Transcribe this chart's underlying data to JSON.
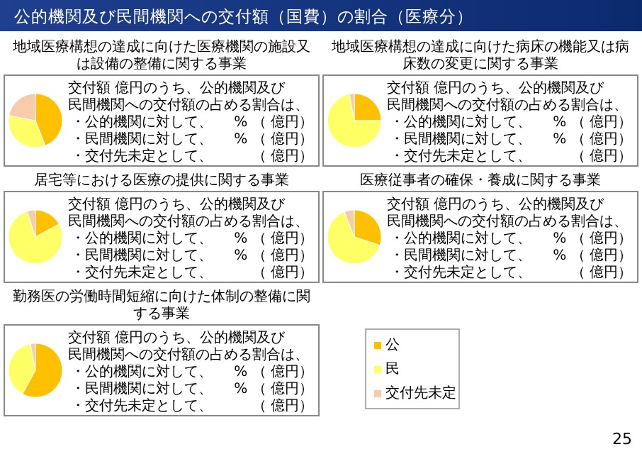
{
  "chart_data": [
    {
      "type": "pie",
      "title": "地域医療構想の達成に向けた医療機関の施設又は設備の整備に関する事業",
      "categories": [
        null,
        null,
        null
      ],
      "values": [
        44,
        34,
        22
      ],
      "colors": [
        "#ffc000",
        "#ffff66",
        "#f8cbad"
      ],
      "legend": false,
      "annotations": [
        "交付額  億円のうち、公的機関及び",
        "民間機関への交付額の占める割合は、",
        "・公的機関に対して、",
        "% （ 億円）",
        "・民間機関に対して、",
        "% （ 億円）",
        "・交付先未定として、",
        "（ 億円）"
      ]
    },
    {
      "type": "pie",
      "title": "地域医療構想の達成に向けた病床の機能又は病床数の変更に関する事業",
      "categories": [
        null,
        null,
        null
      ],
      "values": [
        25,
        72,
        3
      ],
      "colors": [
        "#ffc000",
        "#ffff66",
        "#f8cbad"
      ],
      "legend": false,
      "annotations": [
        "交付額  億円のうち、公的機関及び",
        "民間機関への交付額の占める割合は、",
        "・公的機関に対して、",
        "% （ 億円）",
        "・民間機関に対して、",
        "% （ 億円）",
        "・交付先未定として、",
        "（ 億円）"
      ]
    },
    {
      "type": "pie",
      "title": "居宅等における医療の提供に関する事業",
      "categories": [
        null,
        null,
        null
      ],
      "values": [
        17,
        78,
        5
      ],
      "colors": [
        "#ffc000",
        "#ffff66",
        "#f8cbad"
      ],
      "legend": false,
      "annotations": [
        "交付額  億円のうち、公的機関及び",
        "民間機関への交付額の占める割合は、",
        "・公的機関に対して、",
        "% （ 億円）",
        "・民間機関に対して、",
        "% （ 億円）",
        "・交付先未定として、",
        "（ 億円）"
      ]
    },
    {
      "type": "pie",
      "title": "医療従事者の確保・養成に関する事業",
      "categories": [
        null,
        null,
        null
      ],
      "values": [
        30,
        64,
        6
      ],
      "colors": [
        "#ffc000",
        "#ffff66",
        "#f8cbad"
      ],
      "legend": false,
      "annotations": [
        "交付額  億円のうち、公的機関及び",
        "民間機関への交付額の占める割合は、",
        "・公的機関に対して、",
        "% （ 億円）",
        "・民間機関に対して、",
        "% （ 億円）",
        "・交付先未定として、",
        "（ 億円）"
      ]
    },
    {
      "type": "pie",
      "title": "勤務医の労働時間短縮に向けた体制の整備に関する事業",
      "categories": [
        "公",
        "民",
        "交付先未定"
      ],
      "values": [
        58,
        39,
        3
      ],
      "colors": [
        "#ffc000",
        "#ffff66",
        "#f8cbad"
      ],
      "legend": "right",
      "annotations": [
        "交付額  億円のうち、公的機関及び",
        "民間機関への交付額の占める割合は、",
        "・公的機関に対して、",
        "% （ 億円）",
        "・民間機関に対して、",
        "% （ 億円）",
        "・交付先未定として、",
        "（ 億円）"
      ]
    },
    {
      "type": "other",
      "title": "公的機関及び民間機関への交付額（国費）の割合（医療分）",
      "annotations": [
        "25"
      ]
    }
  ]
}
